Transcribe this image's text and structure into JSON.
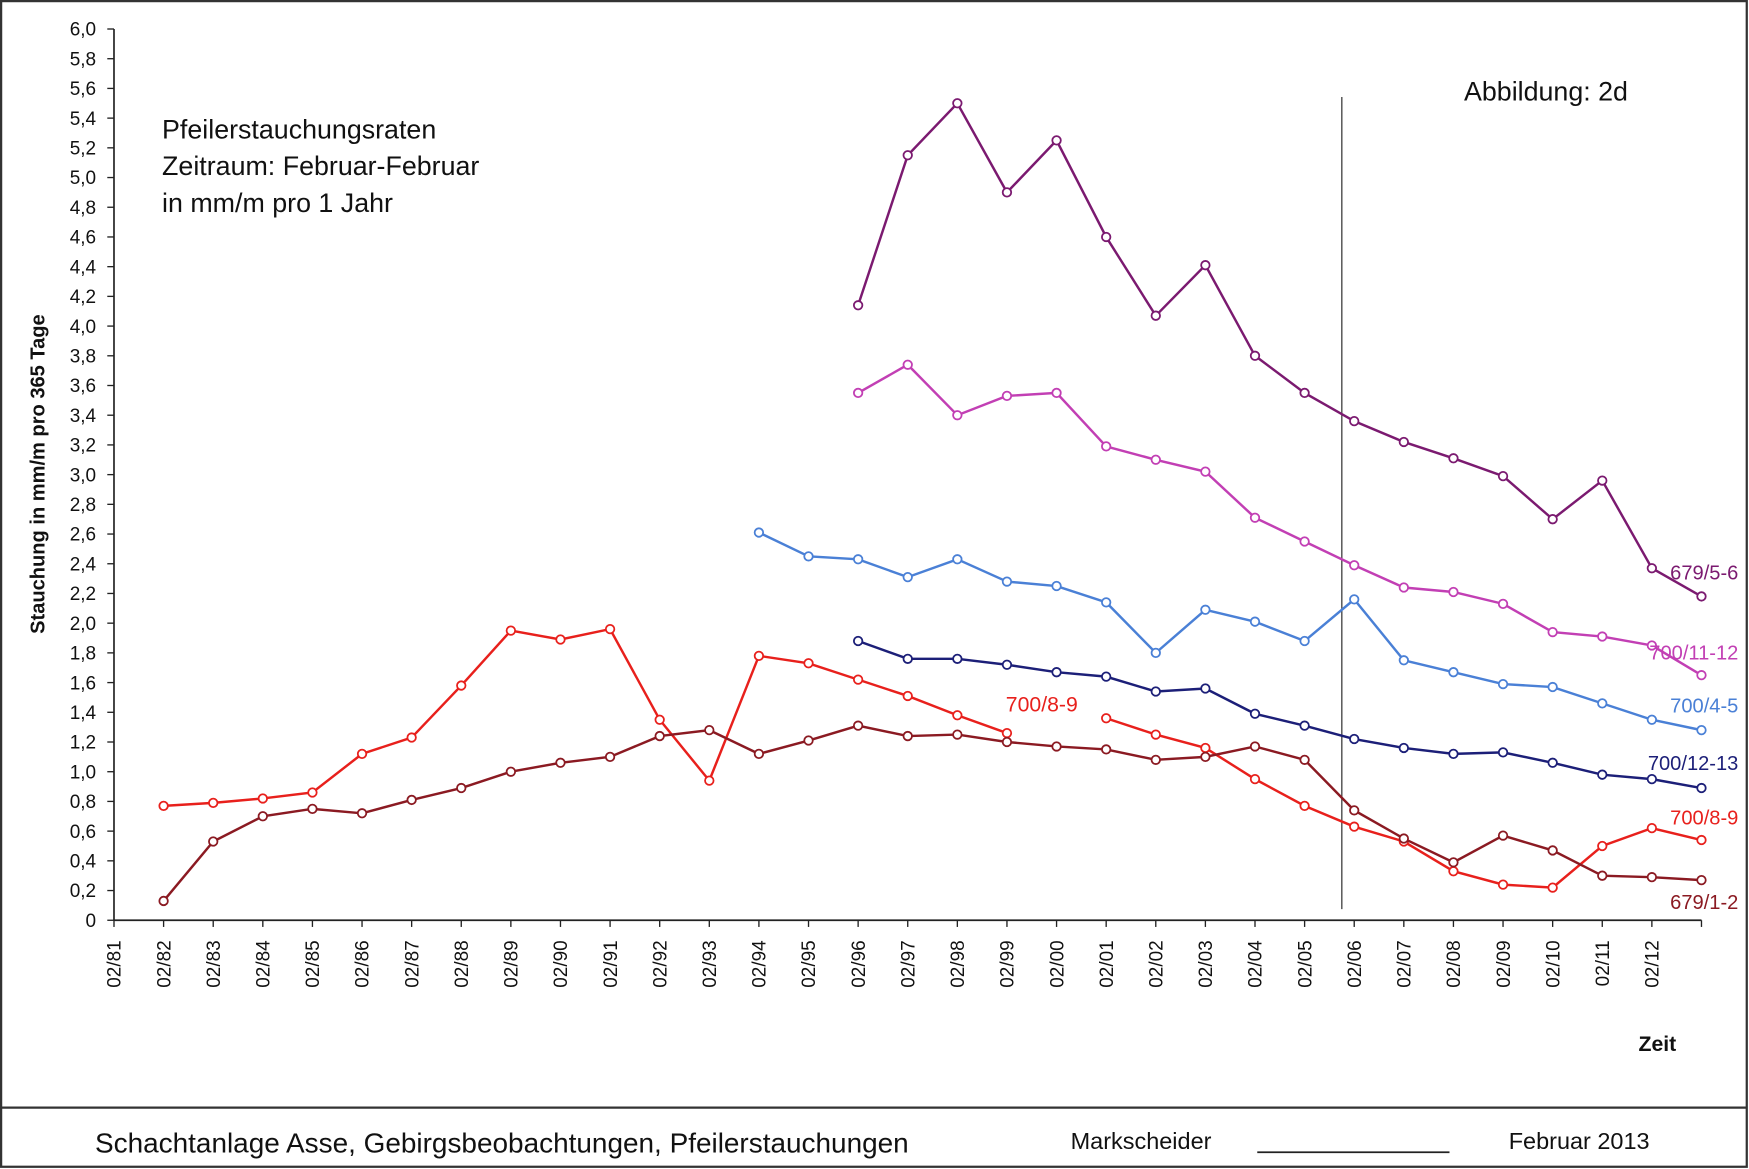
{
  "chart_data": {
    "type": "line",
    "title": [
      "Pfeilerstauchungsraten",
      "Zeitraum: Februar-Februar",
      "in mm/m pro 1 Jahr"
    ],
    "figure_label": "Abbildung:  2d",
    "y_label": "Stauchung in mm/m pro 365 Tage",
    "x_label": "Zeit",
    "annotation": {
      "text": "700/8-9",
      "color": "#e8201c"
    },
    "categories": [
      "02/81",
      "02/82",
      "02/83",
      "02/84",
      "02/85",
      "02/86",
      "02/87",
      "02/88",
      "02/89",
      "02/90",
      "02/91",
      "02/92",
      "02/93",
      "02/94",
      "02/95",
      "02/96",
      "02/97",
      "02/98",
      "02/99",
      "02/00",
      "02/01",
      "02/02",
      "02/03",
      "02/04",
      "02/05",
      "02/06",
      "02/07",
      "02/08",
      "02/09",
      "02/10",
      "02/11",
      "02/12",
      null
    ],
    "vline": 24.75,
    "ylim": [
      0,
      6
    ],
    "yticks": [
      0,
      {
        "value": 0.2,
        "label": "0,2"
      },
      {
        "value": 0.4,
        "label": "0,4"
      },
      {
        "value": 0.6,
        "label": "0,6"
      },
      {
        "value": 0.8,
        "label": "0,8"
      },
      {
        "value": 1.0,
        "label": "1,0"
      },
      {
        "value": 1.2,
        "label": "1,2"
      },
      {
        "value": 1.4,
        "label": "1,4"
      },
      {
        "value": 1.6,
        "label": "1,6"
      },
      {
        "value": 1.8,
        "label": "1,8"
      },
      {
        "value": 2.0,
        "label": "2,0"
      },
      {
        "value": 2.2,
        "label": "2,2"
      },
      {
        "value": 2.4,
        "label": "2,4"
      },
      {
        "value": 2.6,
        "label": "2,6"
      },
      {
        "value": 2.8,
        "label": "2,8"
      },
      {
        "value": 3.0,
        "label": "3,0"
      },
      {
        "value": 3.2,
        "label": "3,2"
      },
      {
        "value": 3.4,
        "label": "3,4"
      },
      {
        "value": 3.6,
        "label": "3,6"
      },
      {
        "value": 3.8,
        "label": "3,8"
      },
      {
        "value": 4.0,
        "label": "4,0"
      },
      {
        "value": 4.2,
        "label": "4,2"
      },
      {
        "value": 4.4,
        "label": "4,4"
      },
      {
        "value": 4.6,
        "label": "4,6"
      },
      {
        "value": 4.8,
        "label": "4,8"
      },
      {
        "value": 5.0,
        "label": "5,0"
      },
      {
        "value": 5.2,
        "label": "5,2"
      },
      {
        "value": 5.4,
        "label": "5,4"
      },
      {
        "value": 5.6,
        "label": "5,6"
      },
      {
        "value": 5.8,
        "label": "5,8"
      },
      {
        "value": 6.0,
        "label": "6,0"
      }
    ],
    "series": [
      {
        "name": "679/5-6",
        "color": "#7b1a70",
        "values": [
          null,
          null,
          null,
          null,
          null,
          null,
          null,
          null,
          null,
          null,
          null,
          null,
          null,
          null,
          null,
          4.14,
          5.15,
          5.5,
          4.9,
          5.25,
          4.6,
          4.07,
          4.41,
          3.8,
          3.55,
          3.36,
          3.22,
          3.11,
          2.99,
          2.7,
          2.96,
          2.37,
          2.18
        ]
      },
      {
        "name": "700/11-12",
        "color": "#c23fb4",
        "values": [
          null,
          null,
          null,
          null,
          null,
          null,
          null,
          null,
          null,
          null,
          null,
          null,
          null,
          null,
          null,
          3.55,
          3.74,
          3.4,
          3.53,
          3.55,
          3.19,
          3.1,
          3.02,
          2.71,
          2.55,
          2.39,
          2.24,
          2.21,
          2.13,
          1.94,
          1.91,
          1.85,
          1.65
        ]
      },
      {
        "name": "700/4-5",
        "color": "#4a80d6",
        "values": [
          null,
          null,
          null,
          null,
          null,
          null,
          null,
          null,
          null,
          null,
          null,
          null,
          null,
          2.61,
          2.45,
          2.43,
          2.31,
          2.43,
          2.28,
          2.25,
          2.14,
          1.8,
          2.09,
          2.01,
          1.88,
          2.16,
          1.75,
          1.67,
          1.59,
          1.57,
          1.46,
          1.35,
          1.28
        ]
      },
      {
        "name": "700/12-13",
        "color": "#1c1f78",
        "values": [
          null,
          null,
          null,
          null,
          null,
          null,
          null,
          null,
          null,
          null,
          null,
          null,
          null,
          null,
          null,
          1.88,
          1.76,
          1.76,
          1.72,
          1.67,
          1.64,
          1.54,
          1.56,
          1.39,
          1.31,
          1.22,
          1.16,
          1.12,
          1.13,
          1.06,
          0.98,
          0.95,
          0.89
        ]
      },
      {
        "name": "700/8-9",
        "color": "#e8201c",
        "values": [
          null,
          0.77,
          0.79,
          0.82,
          0.86,
          1.12,
          1.23,
          1.58,
          1.95,
          1.89,
          1.96,
          1.35,
          0.94,
          1.78,
          1.73,
          1.62,
          1.51,
          1.38,
          1.26,
          null,
          1.36,
          1.25,
          1.16,
          0.95,
          0.77,
          0.63,
          0.53,
          0.33,
          0.24,
          0.22,
          0.5,
          0.62,
          0.54
        ]
      },
      {
        "name": "679/1-2",
        "color": "#8b1a22",
        "values": [
          null,
          0.13,
          0.53,
          0.7,
          0.75,
          0.72,
          0.81,
          0.89,
          1.0,
          1.06,
          1.1,
          1.24,
          1.28,
          1.12,
          1.21,
          1.31,
          1.24,
          1.25,
          1.2,
          1.17,
          1.15,
          1.08,
          1.1,
          1.17,
          1.08,
          0.74,
          0.55,
          0.39,
          0.57,
          0.47,
          0.3,
          0.29,
          0.27
        ]
      }
    ]
  },
  "footer": {
    "project": "Schachtanlage Asse, Gebirgsbeobachtungen, Pfeilerstauchungen",
    "signature": "Markscheider",
    "date": "Februar 2013"
  }
}
